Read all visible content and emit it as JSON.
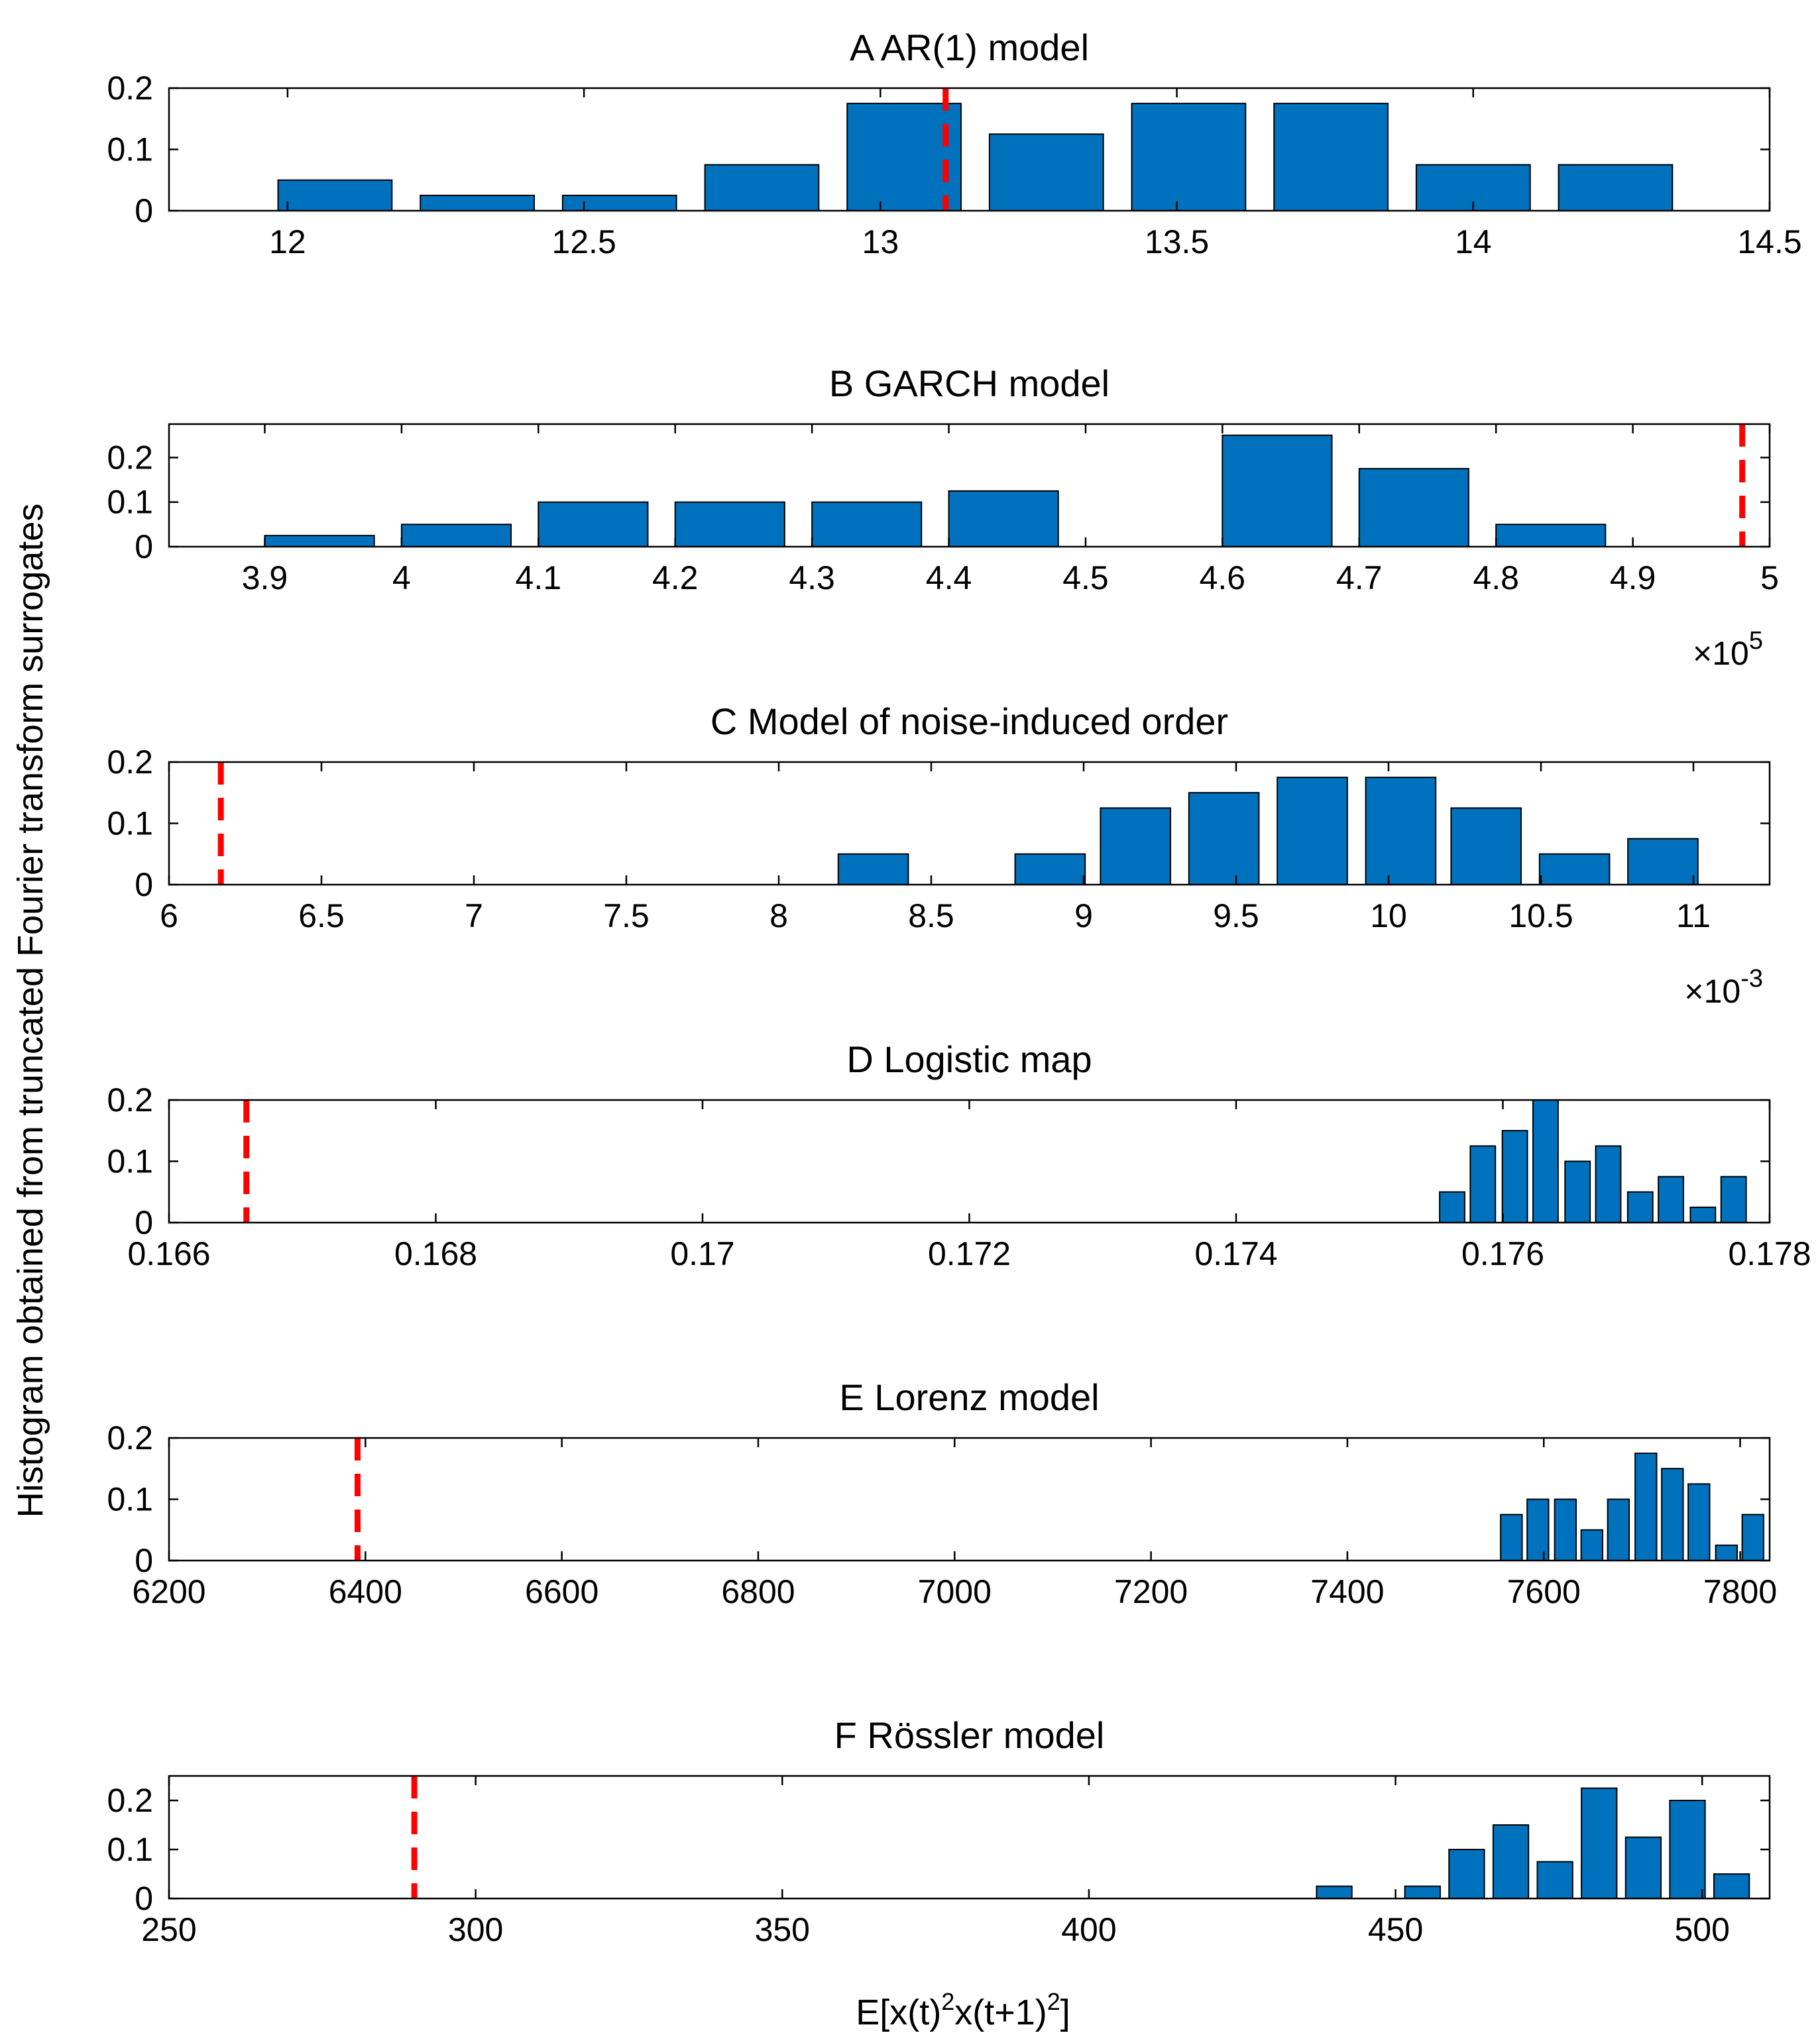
{
  "figure": {
    "ylabel": "Histogram obtained from truncated Fourier transform surrogates",
    "xlabel_parts": [
      "E[x(t)",
      "2",
      "x(t+1)",
      "2",
      "]"
    ]
  },
  "colors": {
    "bar": "#0072BD",
    "marker": "#FF0000"
  },
  "chart_data": [
    {
      "type": "bar",
      "title": "A AR(1) model",
      "xlim": [
        11.8,
        14.5
      ],
      "ylim": [
        0,
        0.2
      ],
      "xticks": [
        12,
        12.5,
        13,
        13.5,
        14,
        14.5
      ],
      "xtick_labels": [
        "12",
        "12.5",
        "13",
        "13.5",
        "14",
        "14.5"
      ],
      "yticks": [
        0,
        0.1,
        0.2
      ],
      "ytick_labels": [
        "0",
        "0.1",
        "0.2"
      ],
      "bin_width": 0.24,
      "bar_fraction": 0.8,
      "x_multiplier": "",
      "observed": 13.11,
      "bins": [
        {
          "x": 12.08,
          "value": 0.05
        },
        {
          "x": 12.32,
          "value": 0.025
        },
        {
          "x": 12.56,
          "value": 0.025
        },
        {
          "x": 12.8,
          "value": 0.075
        },
        {
          "x": 13.04,
          "value": 0.175
        },
        {
          "x": 13.28,
          "value": 0.125
        },
        {
          "x": 13.52,
          "value": 0.175
        },
        {
          "x": 13.76,
          "value": 0.175
        },
        {
          "x": 14.0,
          "value": 0.075
        },
        {
          "x": 14.24,
          "value": 0.075
        }
      ]
    },
    {
      "type": "bar",
      "title": "B GARCH model",
      "xlim": [
        3.83,
        5.0
      ],
      "ylim": [
        0,
        0.275
      ],
      "xticks": [
        3.9,
        4.0,
        4.1,
        4.2,
        4.3,
        4.4,
        4.5,
        4.6,
        4.7,
        4.8,
        4.9,
        5.0
      ],
      "xtick_labels": [
        "3.9",
        "4",
        "4.1",
        "4.2",
        "4.3",
        "4.4",
        "4.5",
        "4.6",
        "4.7",
        "4.8",
        "4.9",
        "5"
      ],
      "yticks": [
        0,
        0.1,
        0.2
      ],
      "ytick_labels": [
        "0",
        "0.1",
        "0.2"
      ],
      "bin_width": 0.1,
      "bar_fraction": 0.8,
      "x_multiplier": "×10^5",
      "x_multiplier_parts": [
        "×10",
        "5"
      ],
      "observed": 4.98,
      "bins": [
        {
          "x": 3.94,
          "value": 0.025
        },
        {
          "x": 4.04,
          "value": 0.05
        },
        {
          "x": 4.14,
          "value": 0.1
        },
        {
          "x": 4.24,
          "value": 0.1
        },
        {
          "x": 4.34,
          "value": 0.1
        },
        {
          "x": 4.44,
          "value": 0.125
        },
        {
          "x": 4.54,
          "value": 0
        },
        {
          "x": 4.64,
          "value": 0.25
        },
        {
          "x": 4.74,
          "value": 0.175
        },
        {
          "x": 4.84,
          "value": 0.05
        }
      ]
    },
    {
      "type": "bar",
      "title": "C Model of noise-induced order",
      "xlim": [
        6.0,
        11.25
      ],
      "ylim": [
        0,
        0.2
      ],
      "xticks": [
        6,
        6.5,
        7,
        7.5,
        8,
        8.5,
        9,
        9.5,
        10,
        10.5,
        11
      ],
      "xtick_labels": [
        "6",
        "6.5",
        "7",
        "7.5",
        "8",
        "8.5",
        "9",
        "9.5",
        "10",
        "10.5",
        "11"
      ],
      "yticks": [
        0,
        0.1,
        0.2
      ],
      "ytick_labels": [
        "0",
        "0.1",
        "0.2"
      ],
      "bin_width": 0.287,
      "bar_fraction": 0.8,
      "x_multiplier": "×10^-3",
      "x_multiplier_parts": [
        "×10",
        "-3"
      ],
      "observed": 6.17,
      "bins": [
        {
          "x": 8.31,
          "value": 0.05
        },
        {
          "x": 8.6,
          "value": 0
        },
        {
          "x": 8.89,
          "value": 0.05
        },
        {
          "x": 9.17,
          "value": 0.125
        },
        {
          "x": 9.46,
          "value": 0.15
        },
        {
          "x": 9.75,
          "value": 0.175
        },
        {
          "x": 10.04,
          "value": 0.175
        },
        {
          "x": 10.32,
          "value": 0.125
        },
        {
          "x": 10.61,
          "value": 0.05
        },
        {
          "x": 10.9,
          "value": 0.075
        }
      ]
    },
    {
      "type": "bar",
      "title": "D Logistic map",
      "xlim": [
        0.166,
        0.178
      ],
      "ylim": [
        0,
        0.2
      ],
      "xticks": [
        0.166,
        0.168,
        0.17,
        0.172,
        0.174,
        0.176,
        0.178
      ],
      "xtick_labels": [
        "0.166",
        "0.168",
        "0.17",
        "0.172",
        "0.174",
        "0.176",
        "0.178"
      ],
      "yticks": [
        0,
        0.1,
        0.2
      ],
      "ytick_labels": [
        "0",
        "0.1",
        "0.2"
      ],
      "bin_width": 0.000235,
      "bar_fraction": 0.8,
      "x_multiplier": "",
      "observed": 0.16658,
      "bins": [
        {
          "x": 0.17562,
          "value": 0.05
        },
        {
          "x": 0.17585,
          "value": 0.125
        },
        {
          "x": 0.17609,
          "value": 0.15
        },
        {
          "x": 0.17632,
          "value": 0.2
        },
        {
          "x": 0.17656,
          "value": 0.1
        },
        {
          "x": 0.17679,
          "value": 0.125
        },
        {
          "x": 0.17703,
          "value": 0.05
        },
        {
          "x": 0.17726,
          "value": 0.075
        },
        {
          "x": 0.1775,
          "value": 0.025
        },
        {
          "x": 0.17773,
          "value": 0.075
        }
      ]
    },
    {
      "type": "bar",
      "title": "E Lorenz model",
      "xlim": [
        6200,
        7830
      ],
      "ylim": [
        0,
        0.2
      ],
      "xticks": [
        6200,
        6400,
        6600,
        6800,
        7000,
        7200,
        7400,
        7600,
        7800
      ],
      "xtick_labels": [
        "6200",
        "6400",
        "6600",
        "6800",
        "7000",
        "7200",
        "7400",
        "7600",
        "7800"
      ],
      "yticks": [
        0,
        0.1,
        0.2
      ],
      "ytick_labels": [
        "0",
        "0.1",
        "0.2"
      ],
      "bin_width": 27.3,
      "bar_fraction": 0.8,
      "x_multiplier": "",
      "observed": 6392,
      "bins": [
        {
          "x": 7567,
          "value": 0.075
        },
        {
          "x": 7594,
          "value": 0.1
        },
        {
          "x": 7622,
          "value": 0.1
        },
        {
          "x": 7649,
          "value": 0.05
        },
        {
          "x": 7676,
          "value": 0.1
        },
        {
          "x": 7704,
          "value": 0.175
        },
        {
          "x": 7731,
          "value": 0.15
        },
        {
          "x": 7758,
          "value": 0.125
        },
        {
          "x": 7786,
          "value": 0.025
        },
        {
          "x": 7813,
          "value": 0.075
        }
      ]
    },
    {
      "type": "bar",
      "title": "F Rössler model",
      "xlim": [
        250,
        511
      ],
      "ylim": [
        0,
        0.25
      ],
      "xticks": [
        250,
        300,
        350,
        400,
        450,
        500
      ],
      "xtick_labels": [
        "250",
        "300",
        "350",
        "400",
        "450",
        "500"
      ],
      "yticks": [
        0,
        0.1,
        0.2
      ],
      "ytick_labels": [
        "0",
        "0.1",
        "0.2"
      ],
      "bin_width": 7.2,
      "bar_fraction": 0.8,
      "x_multiplier": "",
      "observed": 290,
      "bins": [
        {
          "x": 440.0,
          "value": 0.025
        },
        {
          "x": 447.2,
          "value": 0
        },
        {
          "x": 454.4,
          "value": 0.025
        },
        {
          "x": 461.6,
          "value": 0.1
        },
        {
          "x": 468.8,
          "value": 0.15
        },
        {
          "x": 476.0,
          "value": 0.075
        },
        {
          "x": 483.2,
          "value": 0.225
        },
        {
          "x": 490.4,
          "value": 0.125
        },
        {
          "x": 497.6,
          "value": 0.2
        },
        {
          "x": 504.8,
          "value": 0.05
        }
      ]
    }
  ]
}
